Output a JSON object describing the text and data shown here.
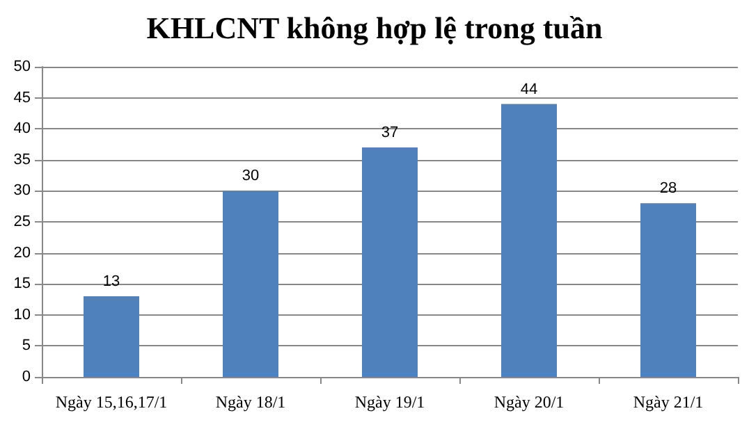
{
  "chart_data": {
    "type": "bar",
    "title": "KHLCNT không hợp lệ trong tuần",
    "categories": [
      "Ngày 15,16,17/1",
      "Ngày 18/1",
      "Ngày 19/1",
      "Ngày 20/1",
      "Ngày 21/1"
    ],
    "values": [
      13,
      30,
      37,
      44,
      28
    ],
    "color": "#4f81bd",
    "ylim": [
      0,
      50
    ],
    "yticks": [
      0,
      5,
      10,
      15,
      20,
      25,
      30,
      35,
      40,
      45,
      50
    ],
    "grid": "y",
    "data_labels": true
  }
}
